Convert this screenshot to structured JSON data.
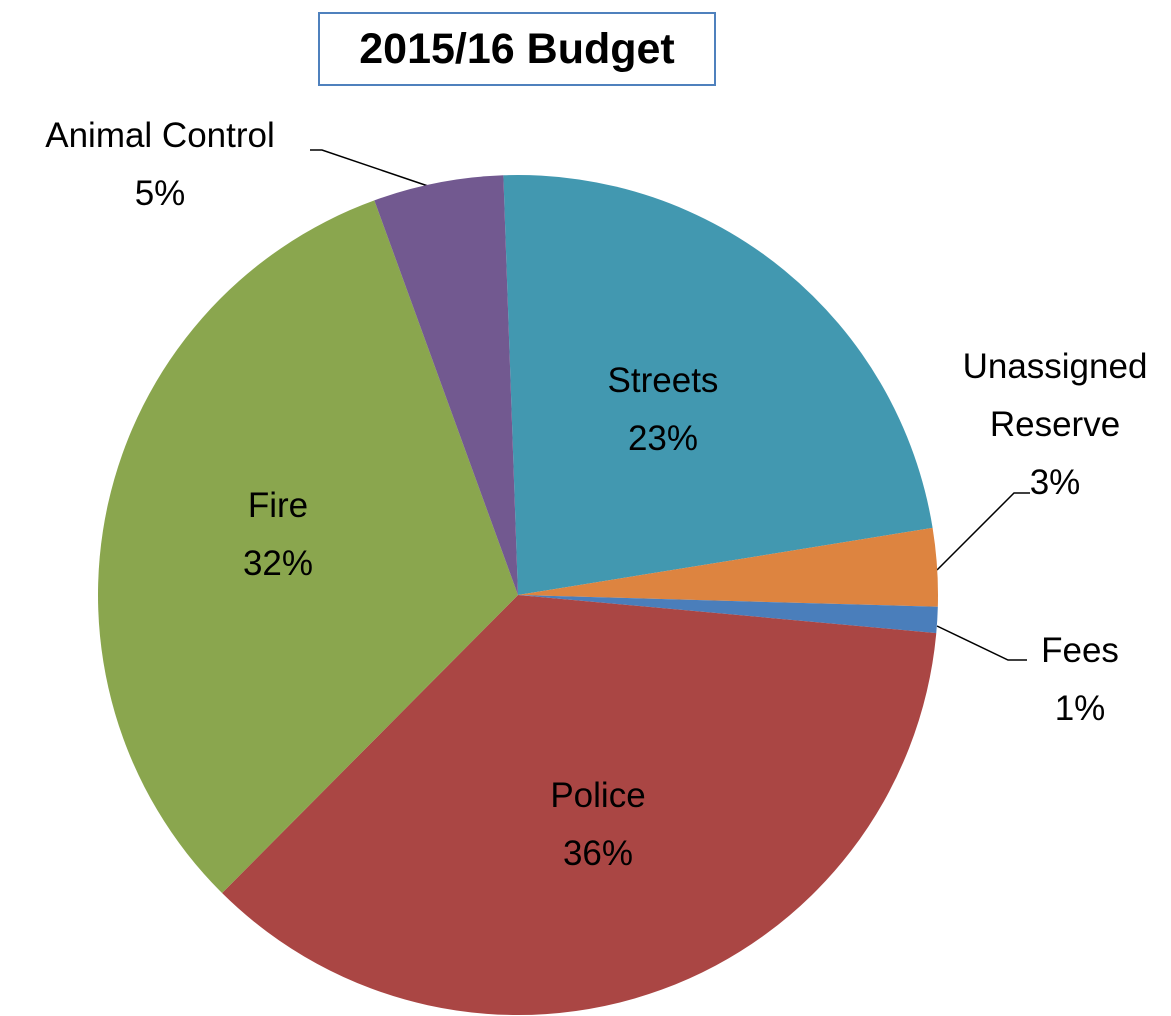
{
  "chart_data": {
    "type": "pie",
    "title": "2015/16 Budget",
    "categories": [
      "Streets",
      "Unassigned Reserve",
      "Fees",
      "Police",
      "Fire",
      "Animal Control"
    ],
    "values": [
      23,
      3,
      1,
      36,
      32,
      5
    ],
    "value_labels": [
      "23%",
      "3%",
      "1%",
      "36%",
      "32%",
      "5%"
    ],
    "colors": [
      "#4298b0",
      "#dd8440",
      "#4a7ebb",
      "#aa4644",
      "#8aa64e",
      "#725990"
    ]
  }
}
